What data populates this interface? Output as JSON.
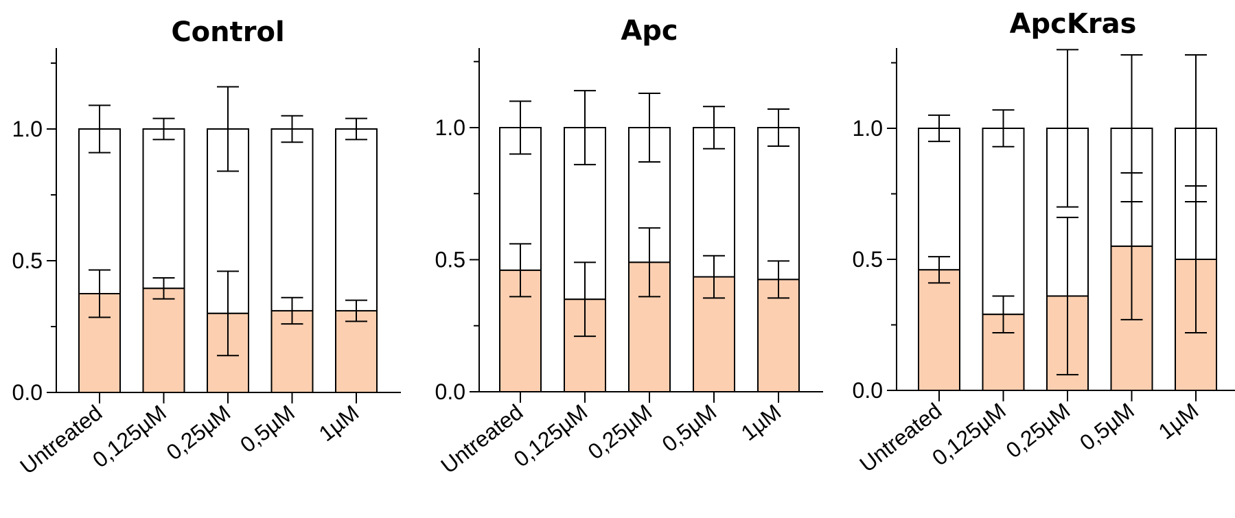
{
  "chart_data": [
    {
      "type": "bar",
      "stacked": true,
      "title": "Control",
      "xlabel": "",
      "ylabel": "",
      "ylim": [
        0,
        1.3
      ],
      "yticks": [
        "0.0",
        "0.5",
        "1.0"
      ],
      "categories": [
        "Untreated",
        "0,125µM",
        "0,25µM",
        "0,5µM",
        "1µM"
      ],
      "series": [
        {
          "values": [
            0.375,
            0.395,
            0.3,
            0.31,
            0.31
          ],
          "error": [
            0.09,
            0.04,
            0.16,
            0.05,
            0.04
          ],
          "color": "#fccfb0"
        },
        {
          "values": [
            0.625,
            0.605,
            0.7,
            0.69,
            0.69
          ],
          "error": [
            0.09,
            0.04,
            0.16,
            0.05,
            0.04
          ],
          "color": "#ffffff"
        }
      ]
    },
    {
      "type": "bar",
      "stacked": true,
      "title": "Apc",
      "xlabel": "",
      "ylabel": "",
      "ylim": [
        0,
        1.3
      ],
      "yticks": [
        "0.0",
        "0.5",
        "1.0"
      ],
      "categories": [
        "Untreated",
        "0,125µM",
        "0,25µM",
        "0,5µM",
        "1µM"
      ],
      "series": [
        {
          "values": [
            0.46,
            0.35,
            0.49,
            0.435,
            0.425
          ],
          "error": [
            0.1,
            0.14,
            0.13,
            0.08,
            0.07
          ],
          "color": "#fccfb0"
        },
        {
          "values": [
            0.54,
            0.65,
            0.51,
            0.565,
            0.575
          ],
          "error": [
            0.1,
            0.14,
            0.13,
            0.08,
            0.07
          ],
          "color": "#ffffff"
        }
      ]
    },
    {
      "type": "bar",
      "stacked": true,
      "title": "ApcKras",
      "xlabel": "",
      "ylabel": "",
      "ylim": [
        0,
        1.3
      ],
      "yticks": [
        "0.0",
        "0.5",
        "1.0"
      ],
      "categories": [
        "Untreated",
        "0,125µM",
        "0,25µM",
        "0,5µM",
        "1µM"
      ],
      "series": [
        {
          "values": [
            0.46,
            0.29,
            0.36,
            0.55,
            0.5
          ],
          "error": [
            0.05,
            0.07,
            0.3,
            0.28,
            0.28
          ],
          "color": "#fccfb0"
        },
        {
          "values": [
            0.54,
            0.71,
            0.64,
            0.45,
            0.5
          ],
          "error": [
            0.05,
            0.07,
            0.3,
            0.28,
            0.28
          ],
          "color": "#ffffff"
        }
      ]
    }
  ]
}
